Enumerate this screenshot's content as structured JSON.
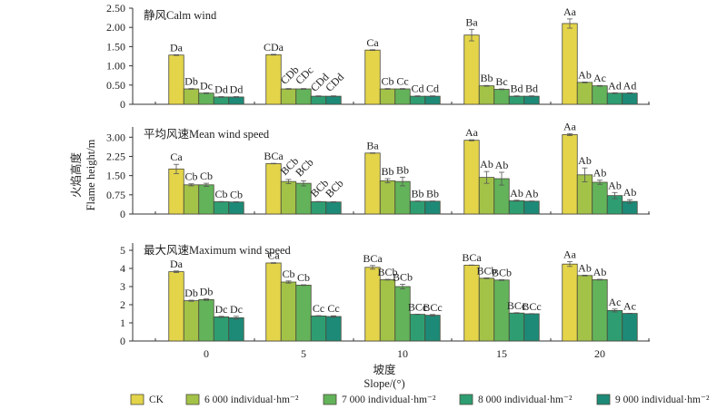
{
  "chart_data": {
    "type": "bar",
    "ylabel_cn": "火焰高度",
    "ylabel_en": "Flame height/m",
    "xlabel_cn": "坡度",
    "xlabel_en": "Slope/(°)",
    "categories": [
      "0",
      "5",
      "10",
      "15",
      "20"
    ],
    "legend": {
      "position": "bottom",
      "entries": [
        {
          "label": "CK",
          "color": "#e3d44a"
        },
        {
          "label": "6 000 individual·hm⁻²",
          "color": "#a3c248"
        },
        {
          "label": "7 000 individual·hm⁻²",
          "color": "#63b35a"
        },
        {
          "label": "8 000 individual·hm⁻²",
          "color": "#2e9e72"
        },
        {
          "label": "9 000 individual·hm⁻²",
          "color": "#1d8a78"
        }
      ]
    },
    "panels": [
      {
        "title": "静风Calm wind",
        "ylim": [
          0,
          2.5
        ],
        "yticks": [
          "0",
          "0.50",
          "1.00",
          "1.50",
          "2.00",
          "2.50"
        ],
        "ytick_values": [
          0,
          0.5,
          1.0,
          1.5,
          2.0,
          2.5
        ],
        "series": [
          {
            "name": "CK",
            "values": [
              1.28,
              1.29,
              1.41,
              1.8,
              2.1
            ],
            "errors": [
              0.01,
              0.01,
              0.01,
              0.15,
              0.12
            ],
            "labels": [
              "Da",
              "CDa",
              "Ca",
              "Ba",
              "Aa"
            ]
          },
          {
            "name": "6 000 individual·hm⁻²",
            "values": [
              0.4,
              0.4,
              0.4,
              0.48,
              0.57
            ],
            "errors": [
              0.01,
              0.01,
              0.01,
              0.01,
              0.01
            ],
            "labels": [
              "Db",
              "CDb",
              "Cb",
              "Bb",
              "Ab"
            ]
          },
          {
            "name": "7 000 individual·hm⁻²",
            "values": [
              0.29,
              0.4,
              0.4,
              0.39,
              0.48
            ],
            "errors": [
              0.01,
              0.01,
              0.01,
              0.01,
              0.01
            ],
            "labels": [
              "Dc",
              "CDc",
              "Cc",
              "Bc",
              "Ac"
            ]
          },
          {
            "name": "8 000 individual·hm⁻²",
            "values": [
              0.19,
              0.21,
              0.21,
              0.21,
              0.29
            ],
            "errors": [
              0.01,
              0.01,
              0.01,
              0.01,
              0.01
            ],
            "labels": [
              "Dd",
              "CDd",
              "Cd",
              "Bd",
              "Ad"
            ]
          },
          {
            "name": "9 000 individual·hm⁻²",
            "values": [
              0.19,
              0.21,
              0.21,
              0.21,
              0.29
            ],
            "errors": [
              0.01,
              0.01,
              0.01,
              0.01,
              0.01
            ],
            "labels": [
              "Dd",
              "CDd",
              "Cd",
              "Bd",
              "Ad"
            ]
          }
        ],
        "rotated_groups": [
          1
        ]
      },
      {
        "title": "平均风速Mean wind speed",
        "ylim": [
          0,
          3.4
        ],
        "yticks": [
          "0",
          "0.75",
          "1.50",
          "2.25",
          "3.00"
        ],
        "ytick_values": [
          0,
          0.75,
          1.5,
          2.25,
          3.0
        ],
        "series": [
          {
            "name": "CK",
            "values": [
              1.76,
              1.97,
              2.38,
              2.88,
              3.1
            ],
            "errors": [
              0.18,
              0.01,
              0.01,
              0.02,
              0.04
            ],
            "labels": [
              "Ca",
              "BCa",
              "Ba",
              "Aa",
              "Aa"
            ]
          },
          {
            "name": "6 000 individual·hm⁻²",
            "values": [
              1.14,
              1.27,
              1.3,
              1.43,
              1.53
            ],
            "errors": [
              0.04,
              0.08,
              0.08,
              0.23,
              0.27
            ],
            "labels": [
              "Cb",
              "BCb",
              "Bb",
              "Ab",
              "Ab"
            ]
          },
          {
            "name": "7 000 individual·hm⁻²",
            "values": [
              1.14,
              1.2,
              1.27,
              1.38,
              1.24
            ],
            "errors": [
              0.06,
              0.1,
              0.17,
              0.25,
              0.08
            ],
            "labels": [
              "Cb",
              "BCb",
              "Bb",
              "Ab",
              "Ab"
            ]
          },
          {
            "name": "8 000 individual·hm⁻²",
            "values": [
              0.48,
              0.48,
              0.5,
              0.52,
              0.72
            ],
            "errors": [
              0.01,
              0.01,
              0.01,
              0.02,
              0.12
            ],
            "labels": [
              "Cb",
              "BCb",
              "Bb",
              "Ab",
              "Ab"
            ]
          },
          {
            "name": "9 000 individual·hm⁻²",
            "values": [
              0.47,
              0.47,
              0.5,
              0.5,
              0.49
            ],
            "errors": [
              0.01,
              0.01,
              0.01,
              0.01,
              0.07
            ],
            "labels": [
              "Cb",
              "BCb",
              "Bb",
              "Ab",
              "Ab"
            ]
          }
        ],
        "rotated_groups": [
          1
        ]
      },
      {
        "title": "最大风速Maximum wind speed",
        "ylim": [
          0,
          5.4
        ],
        "yticks": [
          "0",
          "1",
          "2",
          "3",
          "4",
          "5"
        ],
        "ytick_values": [
          0,
          1,
          2,
          3,
          4,
          5
        ],
        "series": [
          {
            "name": "CK",
            "values": [
              3.82,
              4.3,
              4.06,
              4.18,
              4.24
            ],
            "errors": [
              0.04,
              0.02,
              0.1,
              0.01,
              0.13
            ],
            "labels": [
              "Da",
              "Ca",
              "BCa",
              "BCa",
              "Aa"
            ]
          },
          {
            "name": "6 000 individual·hm⁻²",
            "values": [
              2.22,
              3.25,
              3.38,
              3.46,
              3.61
            ],
            "errors": [
              0.03,
              0.06,
              0.02,
              0.02,
              0.02
            ],
            "labels": [
              "Db",
              "Cb",
              "BCb",
              "BCb",
              "Ab"
            ]
          },
          {
            "name": "7 000 individual·hm⁻²",
            "values": [
              2.28,
              3.08,
              3.0,
              3.36,
              3.38
            ],
            "errors": [
              0.04,
              0.02,
              0.13,
              0.02,
              0.02
            ],
            "labels": [
              "Db",
              "Cb",
              "BCb",
              "BCb",
              "Ab"
            ]
          },
          {
            "name": "8 000 individual·hm⁻²",
            "values": [
              1.33,
              1.38,
              1.47,
              1.54,
              1.68
            ],
            "errors": [
              0.03,
              0.02,
              0.01,
              0.02,
              0.08
            ],
            "labels": [
              "Dc",
              "Cc",
              "BCc",
              "BCc",
              "Ac"
            ]
          },
          {
            "name": "9 000 individual·hm⁻²",
            "values": [
              1.28,
              1.35,
              1.42,
              1.5,
              1.52
            ],
            "errors": [
              0.08,
              0.04,
              0.04,
              0.01,
              0.01
            ],
            "labels": [
              "Dc",
              "Cc",
              "BCc",
              "BCc",
              "Ac"
            ]
          }
        ],
        "rotated_groups": []
      }
    ]
  }
}
